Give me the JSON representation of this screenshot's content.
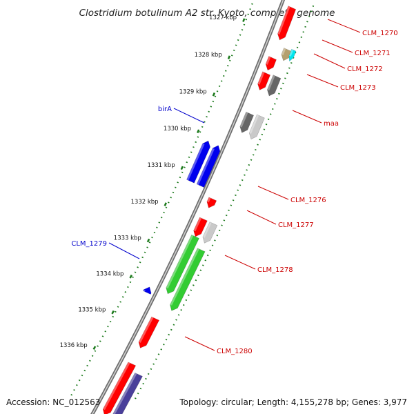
{
  "title": "Clostridium botulinum A2 str. Kyoto, complete genome",
  "footer": {
    "accession": "Accession: NC_012563",
    "summary": "Topology: circular; Length: 4,155,278 bp; Genes: 3,977"
  },
  "colors": {
    "backbone": "#8a8a8a",
    "tick_marks": "#1c7a1c",
    "forward_label": "#0000cc",
    "reverse_label": "#cc0000"
  },
  "ticks": [
    "1327 kbp",
    "1328 kbp",
    "1329 kbp",
    "1330 kbp",
    "1331 kbp",
    "1332 kbp",
    "1333 kbp",
    "1334 kbp",
    "1335 kbp",
    "1336 kbp"
  ],
  "features": [
    {
      "name": "CLM_1270",
      "strand": "reverse",
      "color": "#ff0000"
    },
    {
      "name": "CLM_1271",
      "strand": "reverse",
      "color": "#00e5ee"
    },
    {
      "name": "CLM_1272",
      "strand": "reverse",
      "color": "#ff0000"
    },
    {
      "name": "CLM_1273",
      "strand": "reverse",
      "color": "#666666"
    },
    {
      "name": "maa",
      "strand": "reverse",
      "color": "#c9c9c9"
    },
    {
      "name": "birA",
      "strand": "forward",
      "color": "#0000ee"
    },
    {
      "name": "CLM_1276",
      "strand": "reverse",
      "color": "#ff0000"
    },
    {
      "name": "CLM_1277",
      "strand": "reverse",
      "color": "#c9c9c9"
    },
    {
      "name": "CLM_1278",
      "strand": "reverse",
      "color": "#33cc33"
    },
    {
      "name": "CLM_1279",
      "strand": "forward",
      "color": "#0000ee"
    },
    {
      "name": "CLM_1280",
      "strand": "reverse",
      "color": "#ff0000"
    }
  ]
}
